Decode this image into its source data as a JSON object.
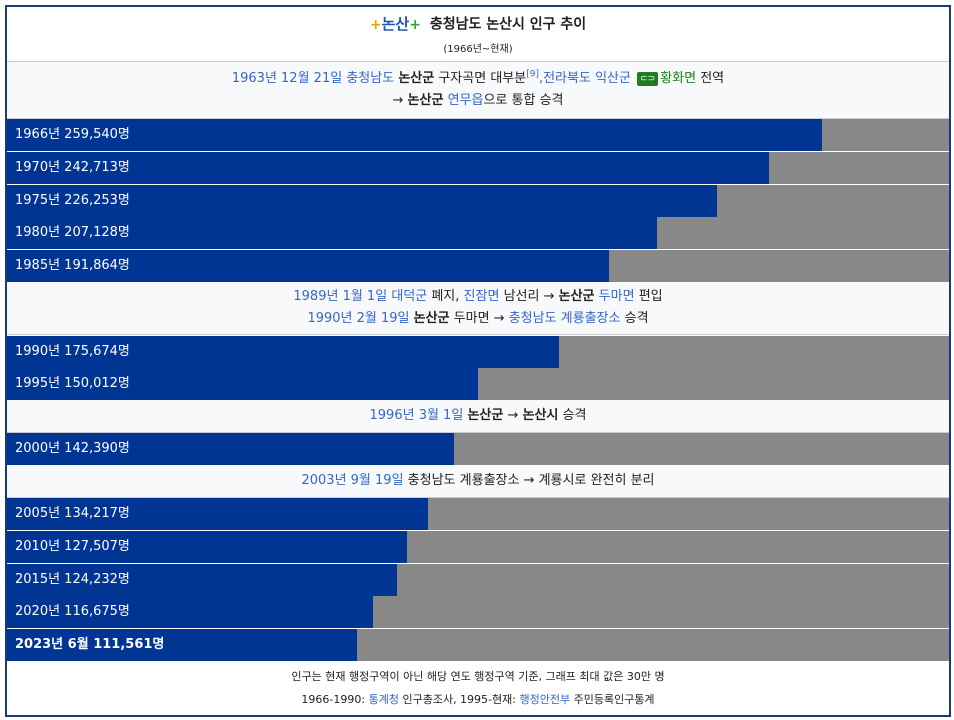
{
  "header": {
    "logo_text": "논산",
    "title": "충청남도 논산시 인구 추이",
    "subtitle": "(1966년~현재)"
  },
  "notes": {
    "n1": {
      "date": "1963년 12월 21일",
      "prov": "충청남도",
      "county": "논산군",
      "text1": "구자곡면 대부분",
      "ref": "[9]",
      "sep": ",",
      "prov2": "전라북도 익산군",
      "badge": "⊂⊃",
      "township": "황화면",
      "text2": "전역",
      "arrow": "→",
      "county2": "논산군",
      "eup": "연무읍",
      "text3": "으로 통합 승격"
    },
    "n2": {
      "date": "1989년 1월 1일",
      "county": "대덕군",
      "text1": "폐지,",
      "township": "진잠면",
      "text2": "남선리 →",
      "county2": "논산군",
      "township2": "두마면",
      "text3": "편입",
      "date2": "1990년 2월 19일",
      "county3": "논산군",
      "text4": "두마면 →",
      "office": "충청남도 계룡출장소",
      "text5": "승격"
    },
    "n3": {
      "date": "1996년 3월 1일",
      "county": "논산군",
      "arrow": "→",
      "city": "논산시",
      "text": "승격"
    },
    "n4": {
      "date": "2003년 9월 19일",
      "text": "충청남도 계룡출장소 → 계룡시로 완전히 분리"
    }
  },
  "chart_data": {
    "type": "bar",
    "orientation": "horizontal",
    "max_value": 300000,
    "colors": {
      "bar": "#003594",
      "track": "#888888"
    },
    "bars": [
      {
        "label": "1966년 259,540명",
        "year": "1966년",
        "value": 259540
      },
      {
        "label": "1970년 242,713명",
        "year": "1970년",
        "value": 242713
      },
      {
        "label": "1975년 226,253명",
        "year": "1975년",
        "value": 226253
      },
      {
        "label": "1980년 207,128명",
        "year": "1980년",
        "value": 207128
      },
      {
        "label": "1985년 191,864명",
        "year": "1985년",
        "value": 191864
      },
      {
        "label": "1990년 175,674명",
        "year": "1990년",
        "value": 175674
      },
      {
        "label": "1995년 150,012명",
        "year": "1995년",
        "value": 150012
      },
      {
        "label": "2000년 142,390명",
        "year": "2000년",
        "value": 142390
      },
      {
        "label": "2005년 134,217명",
        "year": "2005년",
        "value": 134217
      },
      {
        "label": "2010년 127,507명",
        "year": "2010년",
        "value": 127507
      },
      {
        "label": "2015년 124,232명",
        "year": "2015년",
        "value": 124232
      },
      {
        "label": "2020년 116,675명",
        "year": "2020년",
        "value": 116675
      },
      {
        "label": "2023년 6월 111,561명",
        "year": "2023년 6월",
        "value": 111561,
        "bold": true
      }
    ]
  },
  "footer": {
    "line1": "인구는 현재 행정구역이 아닌 해당 연도 행정구역 기준, 그래프 최대 값은 30만 명",
    "line2a": "1966-1990:",
    "src1": "통계청",
    "line2b": "인구총조사, 1995-현재:",
    "src2": "행정안전부",
    "line2c": "주민등록인구통계"
  }
}
